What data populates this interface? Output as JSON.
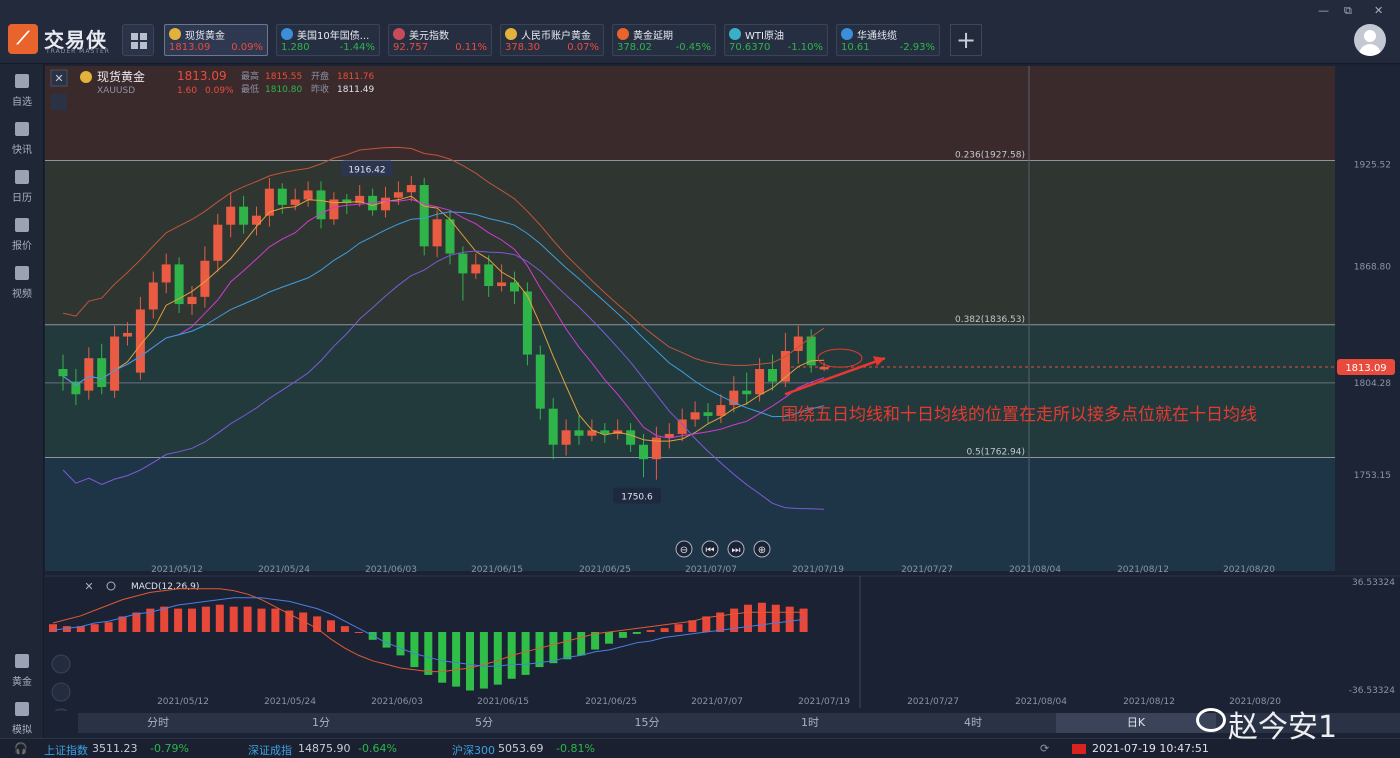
{
  "app": {
    "logo_mark": "⟋",
    "name": "交易侠",
    "sub": "TRADER MASTER"
  },
  "tickers": [
    {
      "name": "现货黄金",
      "price": "1813.09",
      "change": "0.09%",
      "dir": "up",
      "icon_color": "#e3b23c",
      "active": true
    },
    {
      "name": "美国10年国债...",
      "price": "1.280",
      "change": "-1.44%",
      "dir": "down",
      "icon_color": "#3a8fd8",
      "active": false
    },
    {
      "name": "美元指数",
      "price": "92.757",
      "change": "0.11%",
      "dir": "up",
      "icon_color": "#c84b5a",
      "active": false
    },
    {
      "name": "人民币账户黄金",
      "price": "378.30",
      "change": "0.07%",
      "dir": "up",
      "icon_color": "#e3b23c",
      "active": false
    },
    {
      "name": "黄金延期",
      "price": "378.02",
      "change": "-0.45%",
      "dir": "down",
      "icon_color": "#e8642c",
      "active": false
    },
    {
      "name": "WTI原油",
      "price": "70.6370",
      "change": "-1.10%",
      "dir": "down",
      "icon_color": "#3ab0c8",
      "active": false
    },
    {
      "name": "华通线缆",
      "price": "10.61",
      "change": "-2.93%",
      "dir": "down",
      "icon_color": "#3a8fd8",
      "active": false
    }
  ],
  "add_tab": "+",
  "window_controls": [
    "—",
    "⧉",
    "✕"
  ],
  "sidebar": [
    {
      "label": "自选",
      "icon": "star-bookmark-icon"
    },
    {
      "label": "快讯",
      "icon": "news-icon"
    },
    {
      "label": "日历",
      "icon": "calendar-icon"
    },
    {
      "label": "报价",
      "icon": "quote-line-icon"
    },
    {
      "label": "视频",
      "icon": "video-icon"
    },
    {
      "label": "黄金",
      "icon": "gold-grid-icon"
    },
    {
      "label": "模拟",
      "icon": "wallet-icon"
    }
  ],
  "instrument": {
    "close_icon": "✕",
    "name": "现货黄金",
    "code": "XAUUSD",
    "price": "1813.09",
    "change": "1.60",
    "change_pct": "0.09%",
    "high_label": "最高",
    "high": "1815.55",
    "open_label": "开盘",
    "open": "1811.76",
    "low_label": "最低",
    "low": "1810.80",
    "prev_label": "昨收",
    "prev": "1811.49"
  },
  "fib_levels": [
    {
      "label": "0.236(1927.58)",
      "price": 1927.58
    },
    {
      "label": "0.382(1836.53)",
      "price": 1836.53
    },
    {
      "label": "0.5(1762.94)",
      "price": 1762.94
    }
  ],
  "right_axis_labels": [
    "1925.52",
    "1868.80",
    "1804.28",
    "1753.15"
  ],
  "current_price_tag": "1813.09",
  "marker_high": "1916.42",
  "marker_low": "1750.6",
  "annotation": "围绕五日均线和十日均线的位置在走所以接多点位就在十日均线",
  "zoom_controls": [
    "⊖",
    "⏮",
    "⏭",
    "⊕"
  ],
  "x_dates": [
    "2021/05/12",
    "2021/05/24",
    "2021/06/03",
    "2021/06/15",
    "2021/06/25",
    "2021/07/07",
    "2021/07/19",
    "2021/07/27",
    "2021/08/04",
    "2021/08/12",
    "2021/08/20"
  ],
  "macd": {
    "label": "MACD(12,26,9)",
    "axis_top": "36.53324",
    "axis_bottom": "-36.53324"
  },
  "timeframes": [
    {
      "label": "分时",
      "active": false
    },
    {
      "label": "1分",
      "active": false
    },
    {
      "label": "5分",
      "active": false
    },
    {
      "label": "15分",
      "active": false
    },
    {
      "label": "1时",
      "active": false
    },
    {
      "label": "4时",
      "active": false
    },
    {
      "label": "日K",
      "active": true
    }
  ],
  "status": {
    "sh_label": "上证指数",
    "sh_value": "3511.23",
    "sh_chg": "-0.79%",
    "sz_label": "深证成指",
    "sz_value": "14875.90",
    "sz_chg": "-0.64%",
    "hs_label": "沪深300",
    "hs_value": "5053.69",
    "hs_chg": "-0.81%",
    "datetime": "2021-07-19 10:47:51"
  },
  "watermark": "赵今安1",
  "colors": {
    "up": "#ec4c3c",
    "down": "#2bb74a",
    "annotation": "#e8392f"
  },
  "chart_data": {
    "type": "candlestick",
    "ylim": [
      1700,
      1980
    ],
    "candles": [
      [
        1812,
        1808,
        1820,
        1800
      ],
      [
        1805,
        1798,
        1812,
        1792
      ],
      [
        1800,
        1818,
        1824,
        1795
      ],
      [
        1818,
        1802,
        1826,
        1798
      ],
      [
        1800,
        1830,
        1836,
        1796
      ],
      [
        1830,
        1832,
        1838,
        1825
      ],
      [
        1810,
        1845,
        1852,
        1806
      ],
      [
        1845,
        1860,
        1866,
        1840
      ],
      [
        1860,
        1870,
        1876,
        1854
      ],
      [
        1870,
        1848,
        1874,
        1843
      ],
      [
        1848,
        1852,
        1858,
        1842
      ],
      [
        1852,
        1872,
        1880,
        1846
      ],
      [
        1872,
        1892,
        1898,
        1866
      ],
      [
        1892,
        1902,
        1910,
        1885
      ],
      [
        1902,
        1892,
        1908,
        1887
      ],
      [
        1892,
        1897,
        1902,
        1886
      ],
      [
        1897,
        1912,
        1918,
        1891
      ],
      [
        1912,
        1903,
        1915,
        1898
      ],
      [
        1903,
        1906,
        1912,
        1900
      ],
      [
        1906,
        1911,
        1916,
        1902
      ],
      [
        1911,
        1895,
        1916,
        1890
      ],
      [
        1895,
        1906,
        1910,
        1892
      ],
      [
        1906,
        1904,
        1909,
        1898
      ],
      [
        1904,
        1908,
        1914,
        1902
      ],
      [
        1908,
        1900,
        1912,
        1897
      ],
      [
        1900,
        1907,
        1913,
        1896
      ],
      [
        1907,
        1910,
        1916,
        1903
      ],
      [
        1910,
        1914,
        1919,
        1905
      ],
      [
        1914,
        1880,
        1918,
        1875
      ],
      [
        1880,
        1895,
        1900,
        1874
      ],
      [
        1895,
        1876,
        1900,
        1870
      ],
      [
        1876,
        1865,
        1880,
        1850
      ],
      [
        1865,
        1870,
        1876,
        1862
      ],
      [
        1870,
        1858,
        1875,
        1852
      ],
      [
        1858,
        1860,
        1870,
        1855
      ],
      [
        1860,
        1855,
        1866,
        1848
      ],
      [
        1855,
        1820,
        1860,
        1814
      ],
      [
        1820,
        1790,
        1825,
        1784
      ],
      [
        1790,
        1770,
        1796,
        1762
      ],
      [
        1770,
        1778,
        1784,
        1764
      ],
      [
        1778,
        1775,
        1786,
        1770
      ],
      [
        1775,
        1778,
        1784,
        1772
      ],
      [
        1778,
        1776,
        1782,
        1771
      ],
      [
        1776,
        1778,
        1784,
        1773
      ],
      [
        1778,
        1770,
        1782,
        1766
      ],
      [
        1770,
        1762,
        1776,
        1752
      ],
      [
        1762,
        1774,
        1780,
        1750.6
      ],
      [
        1774,
        1776,
        1782,
        1768
      ],
      [
        1776,
        1784,
        1790,
        1772
      ],
      [
        1784,
        1788,
        1794,
        1780
      ],
      [
        1788,
        1786,
        1793,
        1782
      ],
      [
        1786,
        1792,
        1798,
        1782
      ],
      [
        1792,
        1800,
        1808,
        1788
      ],
      [
        1800,
        1798,
        1810,
        1792
      ],
      [
        1798,
        1812,
        1818,
        1794
      ],
      [
        1812,
        1805,
        1820,
        1800
      ],
      [
        1805,
        1822,
        1832,
        1802
      ],
      [
        1822,
        1830,
        1836,
        1815
      ],
      [
        1830,
        1814,
        1834,
        1810
      ],
      [
        1811.76,
        1813.09,
        1815.55,
        1810.8
      ]
    ],
    "macd_hist": [
      4,
      3,
      3,
      4,
      5,
      8,
      10,
      12,
      13,
      12,
      12,
      13,
      14,
      13,
      13,
      12,
      12,
      11,
      10,
      8,
      6,
      3,
      0,
      -4,
      -8,
      -12,
      -18,
      -22,
      -26,
      -28,
      -30,
      -29,
      -27,
      -24,
      -22,
      -18,
      -16,
      -14,
      -12,
      -9,
      -6,
      -3,
      -1,
      1,
      2,
      4,
      6,
      8,
      10,
      12,
      14,
      15,
      14,
      13,
      12
    ],
    "dif": [
      5,
      7,
      9,
      12,
      15,
      18,
      20,
      22,
      23,
      24,
      24,
      24,
      24,
      23,
      21,
      18,
      14,
      10,
      6,
      2,
      -4,
      -9,
      -13,
      -16,
      -18,
      -20,
      -21,
      -22,
      -22,
      -21,
      -20,
      -18,
      -16,
      -13,
      -11,
      -9,
      -7,
      -5,
      -3,
      -1,
      0,
      1,
      2,
      3,
      4,
      5,
      6,
      8,
      9,
      10,
      11,
      11,
      11,
      11,
      11
    ],
    "dea": [
      1,
      2,
      3,
      5,
      6,
      8,
      10,
      11,
      13,
      15,
      16,
      17,
      18,
      19,
      19,
      19,
      18,
      17,
      15,
      13,
      10,
      6,
      2,
      -2,
      -6,
      -9,
      -12,
      -14,
      -16,
      -17,
      -18,
      -19,
      -19,
      -18,
      -18,
      -17,
      -16,
      -14,
      -13,
      -11,
      -10,
      -8,
      -6,
      -5,
      -3,
      -2,
      -1,
      0,
      1,
      2,
      3,
      4,
      5,
      6,
      7
    ]
  }
}
